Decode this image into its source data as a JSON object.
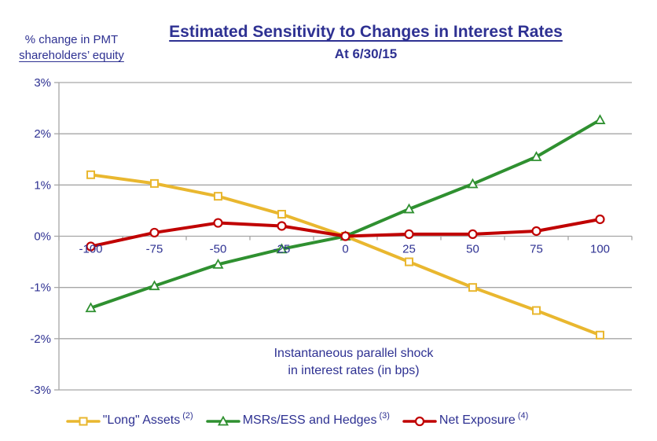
{
  "header": {
    "title": "Estimated Sensitivity to Changes in Interest Rates",
    "subtitle": "At 6/30/15"
  },
  "axis_titles": {
    "y_line1": "% change in PMT",
    "y_line2": "shareholders’ equity",
    "x_line1": "Instantaneous parallel shock",
    "x_line2": "in interest rates (in bps)"
  },
  "legend": {
    "items": [
      {
        "label": "\"Long\" Assets",
        "sup": "(2)"
      },
      {
        "label": "MSRs/ESS and Hedges",
        "sup": "(3)"
      },
      {
        "label": "Net Exposure",
        "sup": "(4)"
      }
    ]
  },
  "colors": {
    "text_navy": "#2E3192",
    "gridline": "#A6A6A6",
    "long_assets": "#E9B72F",
    "msrs_hedges": "#2F9030",
    "net_exposure": "#C00000",
    "marker_fill": "#FFFFFF"
  },
  "chart_data": {
    "type": "line",
    "title": "Estimated Sensitivity to Changes in Interest Rates",
    "subtitle": "At 6/30/15",
    "xlabel": "Instantaneous parallel shock in interest rates (in bps)",
    "ylabel": "% change in PMT shareholders’ equity",
    "x": [
      -100,
      -75,
      -50,
      -25,
      0,
      25,
      50,
      75,
      100
    ],
    "x_tick_labels": [
      "-100",
      "-75",
      "-50",
      "-25",
      "0",
      "25",
      "50",
      "75",
      "100"
    ],
    "y_ticks": [
      3,
      2,
      1,
      0,
      -1,
      -2,
      -3
    ],
    "y_tick_labels": [
      "3%",
      "2%",
      "1%",
      "0%",
      "-1%",
      "-2%",
      "-3%"
    ],
    "ylim": [
      -3,
      3
    ],
    "grid": true,
    "legend_position": "bottom",
    "series": [
      {
        "name": "\"Long\" Assets",
        "marker": "square",
        "color": "#E9B72F",
        "values": [
          1.2,
          1.03,
          0.78,
          0.43,
          0.0,
          -0.5,
          -1.0,
          -1.45,
          -1.93
        ]
      },
      {
        "name": "MSRs/ESS and Hedges",
        "marker": "triangle",
        "color": "#2F9030",
        "values": [
          -1.4,
          -0.97,
          -0.55,
          -0.25,
          0.0,
          0.53,
          1.02,
          1.55,
          2.27
        ]
      },
      {
        "name": "Net Exposure",
        "marker": "circle",
        "color": "#C00000",
        "values": [
          -0.2,
          0.07,
          0.26,
          0.2,
          0.0,
          0.04,
          0.04,
          0.1,
          0.33
        ]
      }
    ]
  }
}
